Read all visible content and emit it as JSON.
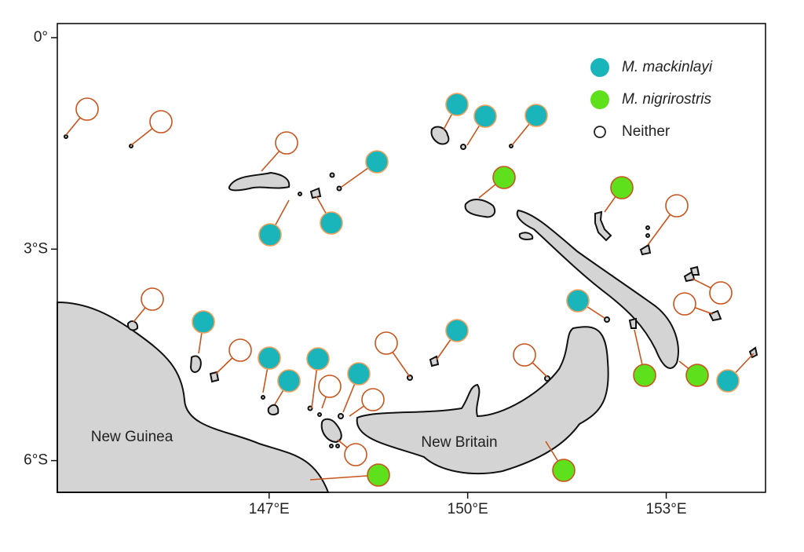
{
  "map": {
    "xlim": [
      143.8,
      154.5
    ],
    "ylim": [
      -6.45,
      0.2
    ],
    "xticks": [
      {
        "value": 147,
        "label": "147°E"
      },
      {
        "value": 150,
        "label": "150°E"
      },
      {
        "value": 153,
        "label": "153°E"
      }
    ],
    "yticks": [
      {
        "value": 0,
        "label": "0°"
      },
      {
        "value": -3,
        "label": "3°S"
      },
      {
        "value": -6,
        "label": "6°S"
      }
    ],
    "legend": [
      {
        "name": "M. mackinlayi",
        "color": "#19b5bb"
      },
      {
        "name": "M. nigrirostris",
        "color": "#5ee01c"
      },
      {
        "name": "Neither",
        "color": "#ffffff"
      }
    ],
    "regions": [
      "New Guinea",
      "New Britain"
    ]
  }
}
